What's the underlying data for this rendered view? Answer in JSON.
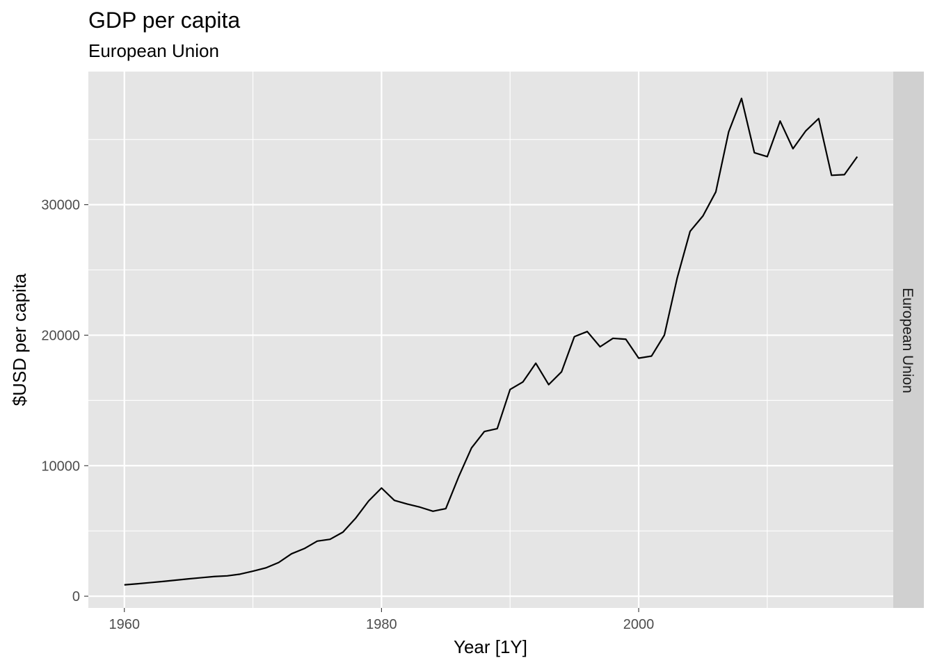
{
  "chart_data": {
    "type": "line",
    "title": "GDP per capita",
    "subtitle": "European Union",
    "xlabel": "Year [1Y]",
    "ylabel": "$USD per capita",
    "facet_label": "European Union",
    "xlim": [
      1957.2,
      2019.8
    ],
    "ylim": [
      -900,
      40200
    ],
    "x_ticks": [
      1960,
      1980,
      2000
    ],
    "x_minor_ticks": [
      1970,
      1990,
      2010
    ],
    "y_ticks": [
      0,
      10000,
      20000,
      30000
    ],
    "y_minor_ticks": [
      5000,
      15000,
      25000,
      35000
    ],
    "grid": true,
    "colors": {
      "panel": "#e5e5e5",
      "grid": "#ffffff",
      "strip": "#d0d0d0",
      "line": "#000000"
    },
    "series": [
      {
        "x": [
          1960,
          1961,
          1962,
          1963,
          1964,
          1965,
          1966,
          1967,
          1968,
          1969,
          1970,
          1971,
          1972,
          1973,
          1974,
          1975,
          1976,
          1977,
          1978,
          1979,
          1980,
          1981,
          1982,
          1983,
          1984,
          1985,
          1986,
          1987,
          1988,
          1989,
          1990,
          1991,
          1992,
          1993,
          1994,
          1995,
          1996,
          1997,
          1998,
          1999,
          2000,
          2001,
          2002,
          2003,
          2004,
          2005,
          2006,
          2007,
          2008,
          2009,
          2010,
          2011,
          2012,
          2013,
          2014,
          2015,
          2016,
          2017
        ],
        "values": [
          870,
          950,
          1040,
          1130,
          1230,
          1330,
          1420,
          1510,
          1560,
          1690,
          1920,
          2170,
          2580,
          3250,
          3650,
          4220,
          4360,
          4910,
          5990,
          7300,
          8290,
          7340,
          7060,
          6820,
          6510,
          6710,
          9150,
          11360,
          12620,
          12840,
          15840,
          16420,
          17850,
          16210,
          17190,
          19890,
          20280,
          19110,
          19760,
          19690,
          18240,
          18400,
          20010,
          24400,
          27960,
          29140,
          30980,
          35580,
          38140,
          33980,
          33680,
          36410,
          34290,
          35660,
          36600,
          32250,
          32300,
          33680
        ]
      }
    ]
  }
}
